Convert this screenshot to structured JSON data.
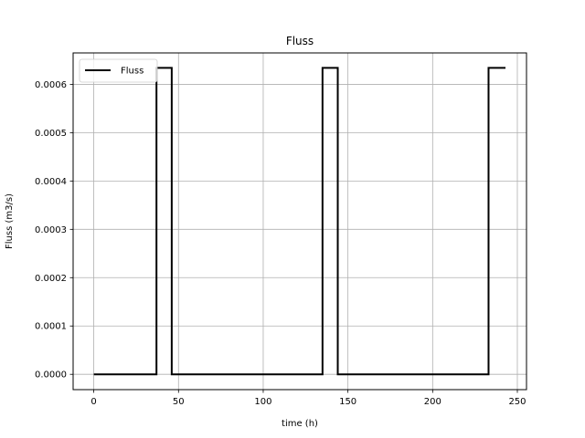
{
  "chart_data": {
    "type": "line",
    "title": "Fluss",
    "xlabel": "time (h)",
    "ylabel": "Fluss (m3/s)",
    "xlim": [
      -12.2,
      255.4
    ],
    "ylim": [
      -3.17e-05,
      0.000665
    ],
    "xticks": [
      0,
      50,
      100,
      150,
      200,
      250
    ],
    "xtick_labels": [
      "0",
      "50",
      "100",
      "150",
      "200",
      "250"
    ],
    "yticks": [
      0,
      0.0001,
      0.0002,
      0.0003,
      0.0004,
      0.0005,
      0.0006
    ],
    "ytick_labels": [
      "0.0000",
      "0.0001",
      "0.0002",
      "0.0003",
      "0.0004",
      "0.0005",
      "0.0006"
    ],
    "grid": true,
    "legend_position": "top-left",
    "series": [
      {
        "name": "Fluss",
        "color": "#000000",
        "points": [
          [
            0,
            0
          ],
          [
            37,
            0
          ],
          [
            37,
            0.000634
          ],
          [
            46,
            0.000634
          ],
          [
            46,
            0
          ],
          [
            135,
            0
          ],
          [
            135,
            0.000634
          ],
          [
            144,
            0.000634
          ],
          [
            144,
            0
          ],
          [
            233,
            0
          ],
          [
            233,
            0.000634
          ],
          [
            243,
            0.000634
          ]
        ]
      }
    ]
  }
}
